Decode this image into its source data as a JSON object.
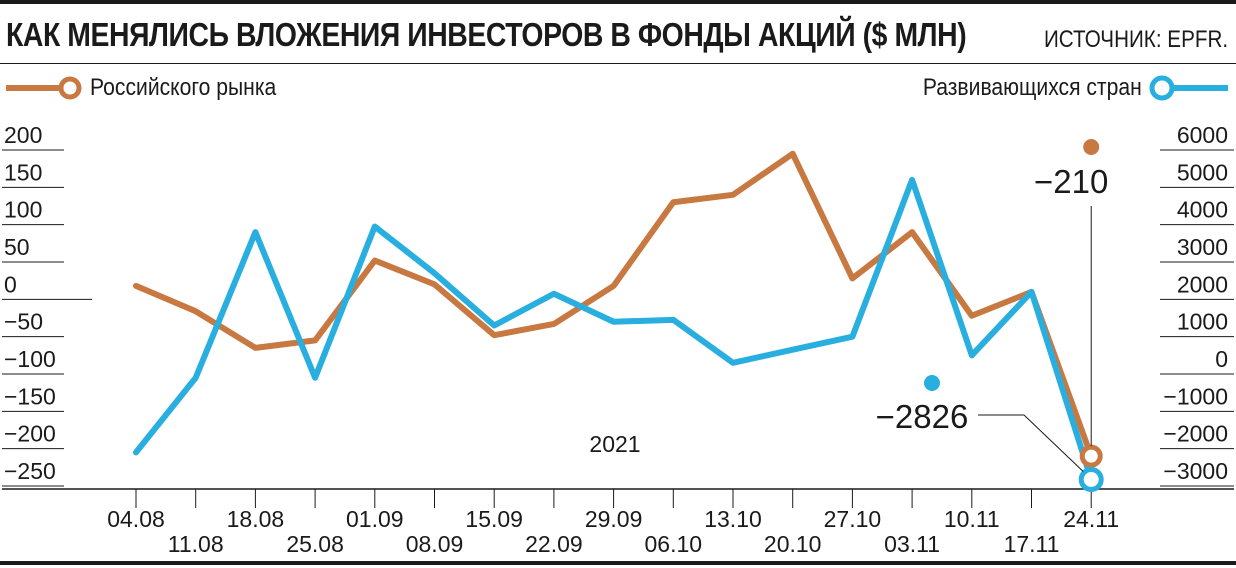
{
  "header": {
    "title": "КАК МЕНЯЛИСЬ ВЛОЖЕНИЯ ИНВЕСТОРОВ В ФОНДЫ АКЦИЙ ($ МЛН)",
    "source": "ИСТОЧНИК: EPFR."
  },
  "colors": {
    "russia": "#c87941",
    "emerging": "#29aee0",
    "ink": "#1a1a1a"
  },
  "chart_data": {
    "type": "line",
    "year_label": "2021",
    "categories": [
      "04.08",
      "11.08",
      "18.08",
      "25.08",
      "01.09",
      "08.09",
      "15.09",
      "22.09",
      "29.09",
      "06.10",
      "13.10",
      "20.10",
      "27.10",
      "03.11",
      "10.11",
      "17.11",
      "24.11"
    ],
    "series": [
      {
        "name": "Российского рынка",
        "axis": "left",
        "values": [
          18,
          -16,
          -65,
          -55,
          52,
          20,
          -48,
          -33,
          18,
          130,
          140,
          195,
          28,
          90,
          -22,
          10,
          -210
        ]
      },
      {
        "name": "Развивающихся стран",
        "axis": "right",
        "values": [
          -2100,
          -100,
          3800,
          -100,
          3950,
          2700,
          1300,
          2150,
          1400,
          1450,
          300,
          650,
          1000,
          5200,
          500,
          2200,
          -2826
        ]
      }
    ],
    "y_left": {
      "ticks": [
        "200",
        "150",
        "100",
        "50",
        "0",
        "−50",
        "−100",
        "−150",
        "−200",
        "−250"
      ],
      "ylim": [
        -250,
        200
      ]
    },
    "y_right": {
      "ticks": [
        "6000",
        "5000",
        "4000",
        "3000",
        "2000",
        "1000",
        "0",
        "−1000",
        "−2000",
        "−3000"
      ],
      "ylim": [
        -3000,
        6000
      ]
    },
    "annotations": [
      {
        "series": 0,
        "text": "−210"
      },
      {
        "series": 1,
        "text": "−2826"
      }
    ]
  }
}
